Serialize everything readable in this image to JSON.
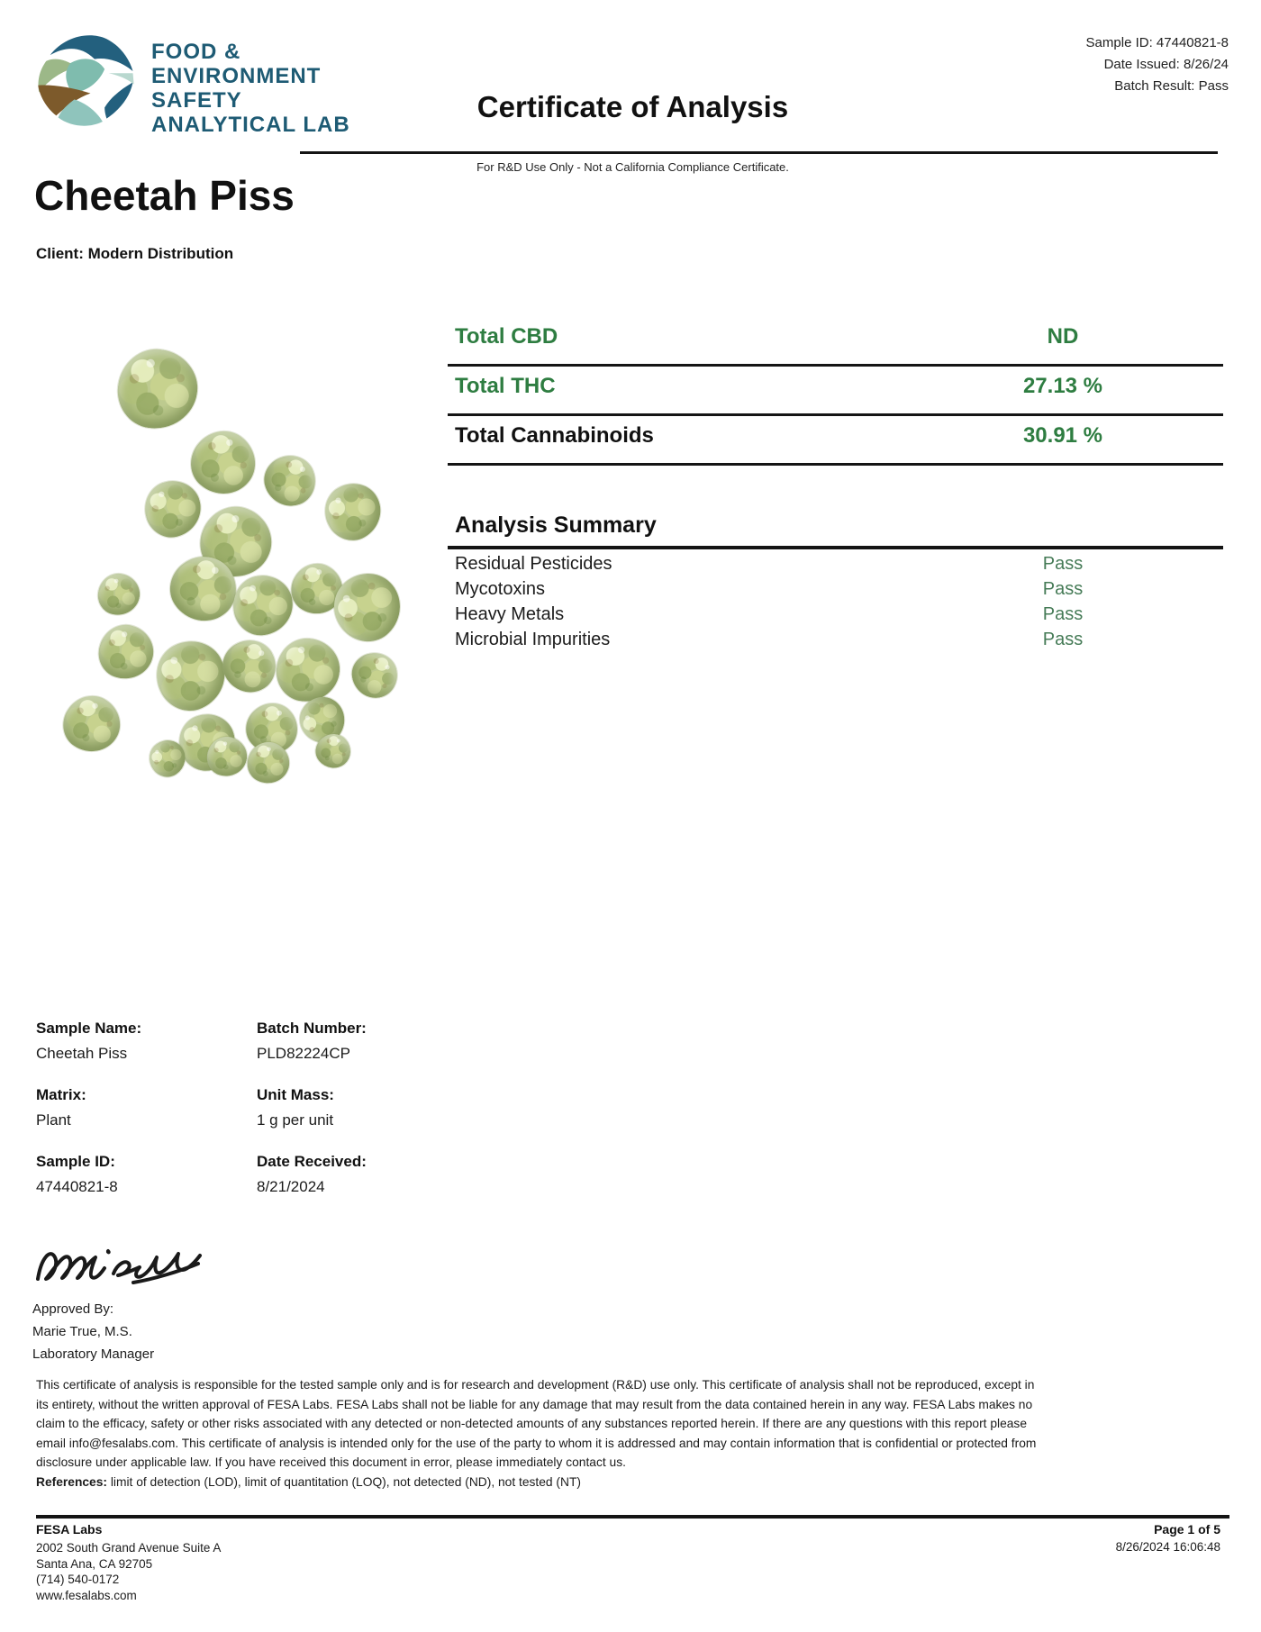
{
  "header": {
    "logo_lines": [
      "FOOD &",
      "ENVIRONMENT",
      "SAFETY",
      "ANALYTICAL LAB"
    ],
    "meta": [
      {
        "label": "Sample ID:",
        "value": "47440821-8"
      },
      {
        "label": "Date Issued:",
        "value": "8/26/24"
      },
      {
        "label": "Batch Result:",
        "value": "Pass"
      }
    ],
    "title": "Certificate of Analysis",
    "subtitle": "For R&D Use Only - Not a California Compliance Certificate."
  },
  "product": {
    "name": "Cheetah Piss",
    "client_label": "Client:",
    "client": "Modern Distribution"
  },
  "cannabinoids": {
    "rows": [
      {
        "label": "Total CBD",
        "value": "ND"
      },
      {
        "label": "Total THC",
        "value": "27.13 %"
      },
      {
        "label": "Total Cannabinoids",
        "value": "30.91 %"
      }
    ]
  },
  "analysis_summary": {
    "title": "Analysis Summary",
    "rows": [
      {
        "label": "Residual Pesticides",
        "value": "Pass"
      },
      {
        "label": "Mycotoxins",
        "value": "Pass"
      },
      {
        "label": "Heavy Metals",
        "value": "Pass"
      },
      {
        "label": "Microbial Impurities",
        "value": "Pass"
      }
    ]
  },
  "details": [
    {
      "label": "Sample Name:",
      "value": "Cheetah Piss"
    },
    {
      "label": "Batch Number:",
      "value": "PLD82224CP"
    },
    {
      "label": "Matrix:",
      "value": "Plant"
    },
    {
      "label": "Unit Mass:",
      "value": "1 g per unit"
    },
    {
      "label": "Sample ID:",
      "value": "47440821-8"
    },
    {
      "label": "Date Received:",
      "value": "8/21/2024"
    }
  ],
  "approval": {
    "approved_by_label": "Approved By:",
    "name": "Marie True, M.S.",
    "title": "Laboratory Manager"
  },
  "disclaimer": {
    "body": "This certificate of analysis is responsible for the tested sample only and is for research and development (R&D) use only. This certificate of analysis shall not be reproduced, except in its entirety, without the written approval of FESA Labs. FESA Labs shall not be liable for any damage that may result from the data contained herein in any way. FESA Labs makes no claim to the efficacy, safety or other risks associated with any detected or non-detected amounts of any substances reported herein. If there are any questions with this report please email info@fesalabs.com. This certificate of analysis is intended only for the use of the party to whom it is addressed and may contain information that is confidential or protected from disclosure under applicable law. If you have received this document in error, please immediately contact us.",
    "references_label": "References:",
    "references_text": " limit of detection (LOD), limit of quantitation (LOQ), not detected (ND), not tested (NT)"
  },
  "footer": {
    "lab_name": "FESA Labs",
    "address_lines": [
      "2002 South Grand Avenue Suite A",
      "Santa Ana, CA 92705",
      "(714) 540-0172",
      "www.fesalabs.com"
    ],
    "page": "Page 1 of 5",
    "datetime": "8/26/2024 16:06:48"
  },
  "colors": {
    "accent_green": "#2e7d41",
    "pass_green": "#467b57",
    "logo_blue": "#1e5b74"
  }
}
